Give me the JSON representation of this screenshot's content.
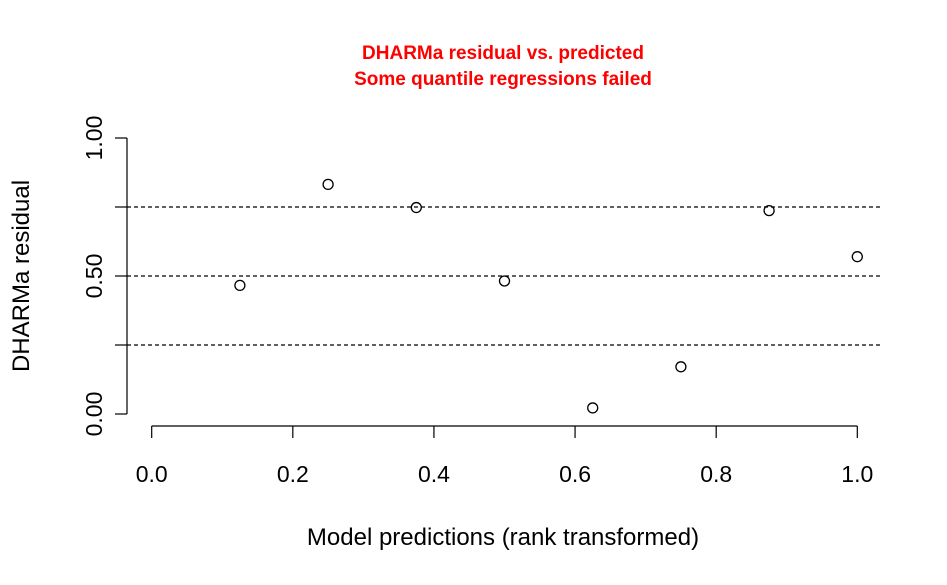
{
  "chart_data": {
    "type": "scatter",
    "title": "DHARMa residual vs. predicted",
    "subtitle": "Some quantile regressions failed",
    "title_color": "#ff0000",
    "xlabel": "Model predictions (rank transformed)",
    "ylabel": "DHARMa residual",
    "xlim": [
      -0.035,
      1.035
    ],
    "ylim": [
      0.0,
      1.0
    ],
    "x_ticks": [
      0.0,
      0.2,
      0.4,
      0.6,
      0.8,
      1.0
    ],
    "x_tick_labels": [
      "0.0",
      "0.2",
      "0.4",
      "0.6",
      "0.8",
      "1.0"
    ],
    "y_ticks": [
      0.0,
      0.25,
      0.5,
      0.75,
      1.0
    ],
    "y_tick_labels": [
      "0.00",
      "",
      "0.50",
      "",
      "1.00"
    ],
    "reference_lines": [
      0.25,
      0.5,
      0.75
    ],
    "grid": false,
    "x": [
      0.125,
      0.25,
      0.375,
      0.5,
      0.625,
      0.75,
      0.875,
      1.0
    ],
    "y": [
      0.466,
      0.832,
      0.748,
      0.482,
      0.022,
      0.171,
      0.737,
      0.57
    ]
  }
}
